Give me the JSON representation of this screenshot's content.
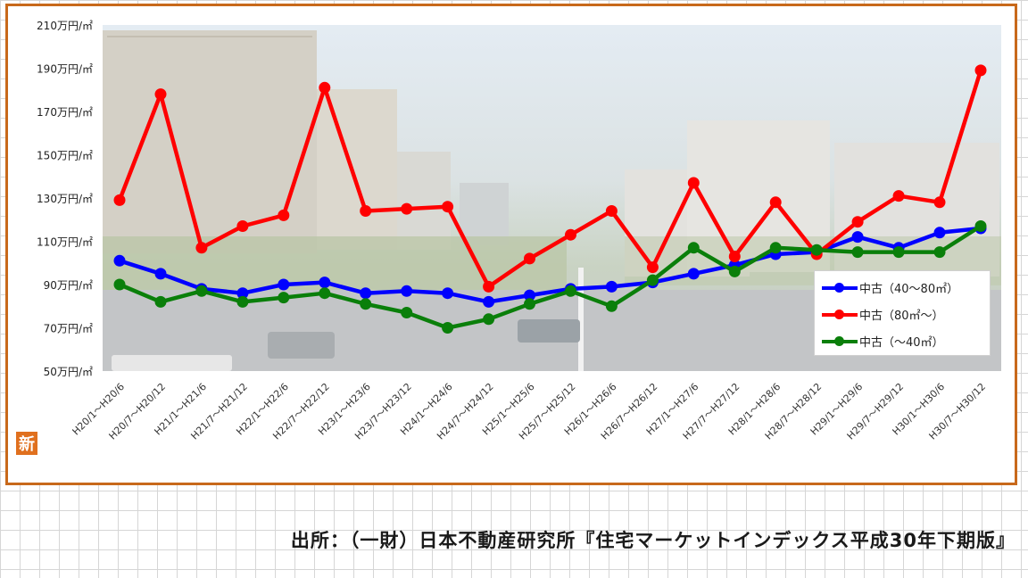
{
  "chart_data": {
    "type": "line",
    "categories": [
      "H20/1～H20/6",
      "H20/7～H20/12",
      "H21/1～H21/6",
      "H21/7～H21/12",
      "H22/1～H22/6",
      "H22/7～H22/12",
      "H23/1～H23/6",
      "H23/7～H23/12",
      "H24/1～H24/6",
      "H24/7～H24/12",
      "H25/1～H25/6",
      "H25/7～H25/12",
      "H26/1～H26/6",
      "H26/7～H26/12",
      "H27/1～H27/6",
      "H27/7～H27/12",
      "H28/1～H28/6",
      "H28/7～H28/12",
      "H29/1～H29/6",
      "H29/7～H29/12",
      "H30/1～H30/6",
      "H30/7～H30/12"
    ],
    "y_ticks": [
      "50万円/㎡",
      "70万円/㎡",
      "90万円/㎡",
      "110万円/㎡",
      "130万円/㎡",
      "150万円/㎡",
      "170万円/㎡",
      "190万円/㎡",
      "210万円/㎡"
    ],
    "ylim": [
      50,
      210
    ],
    "grid": false,
    "legend_position": "right",
    "series": [
      {
        "name": "中古（40～80㎡）",
        "color": "#0000ff",
        "values": [
          101,
          95,
          88,
          86,
          90,
          91,
          86,
          87,
          86,
          82,
          85,
          88,
          89,
          91,
          95,
          99,
          104,
          105,
          112,
          107,
          114,
          116
        ]
      },
      {
        "name": "中古（80㎡～）",
        "color": "#ff0000",
        "values": [
          129,
          178,
          107,
          117,
          122,
          181,
          124,
          125,
          126,
          89,
          102,
          113,
          124,
          98,
          137,
          103,
          128,
          104,
          119,
          131,
          128,
          189
        ]
      },
      {
        "name": "中古（～40㎡）",
        "color": "#0a7f0a",
        "values": [
          90,
          82,
          87,
          82,
          84,
          86,
          81,
          77,
          70,
          74,
          81,
          87,
          80,
          92,
          107,
          96,
          107,
          106,
          105,
          105,
          105,
          117
        ]
      }
    ]
  },
  "logo_text": "新",
  "source_note": "出所：（一財）日本不動産研究所『住宅マーケットインデックス平成30年下期版』"
}
